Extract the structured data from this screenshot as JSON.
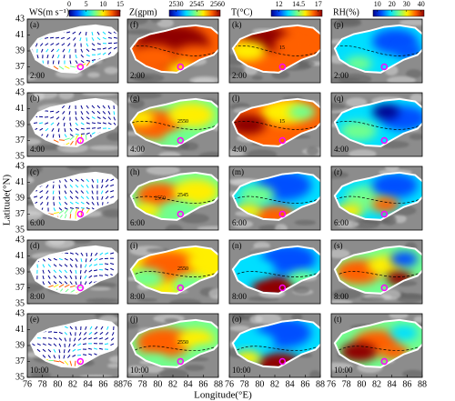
{
  "axes": {
    "ylabel": "Latitude(°N)",
    "xlabel": "Longitude(°E)",
    "xlim": [
      76,
      88
    ],
    "ylim": [
      35,
      43
    ],
    "xticks": [
      76,
      78,
      80,
      82,
      84,
      86,
      88
    ],
    "yticks": [
      35,
      37,
      39,
      41,
      43
    ]
  },
  "colorbars": [
    {
      "label": "WS(m s⁻¹)",
      "lim": [
        0,
        15
      ],
      "ticks": [
        0,
        5,
        10,
        15
      ],
      "colors": [
        "#00008f",
        "#0050ff",
        "#00dfff",
        "#70ff8f",
        "#ffef00",
        "#ff6000",
        "#8f0000"
      ]
    },
    {
      "label": "Z(gpm)",
      "lim": [
        2525,
        2562
      ],
      "ticks": [
        2530,
        2545,
        2560
      ],
      "colors": [
        "#00008f",
        "#0050ff",
        "#00dfff",
        "#70ff8f",
        "#ffef00",
        "#ff6000",
        "#8f0000"
      ]
    },
    {
      "label": "T(°C)",
      "lim": [
        11,
        17.5
      ],
      "ticks": [
        12,
        14.5,
        17
      ],
      "colors": [
        "#00008f",
        "#0050ff",
        "#00dfff",
        "#70ff8f",
        "#ffef00",
        "#ff6000",
        "#8f0000"
      ]
    },
    {
      "label": "RH(%)",
      "lim": [
        7,
        42
      ],
      "ticks": [
        10,
        20,
        30,
        40
      ],
      "colors": [
        "#00008f",
        "#0050ff",
        "#00dfff",
        "#70ff8f",
        "#ffef00",
        "#ff6000",
        "#8f0000"
      ]
    }
  ],
  "panels": [
    [
      {
        "letter": "(a)",
        "time": "2:00"
      },
      {
        "letter": "(f)",
        "time": "2:00"
      },
      {
        "letter": "(k)",
        "time": "2:00",
        "contour_labels": [
          "15"
        ]
      },
      {
        "letter": "(p)",
        "time": "2:00"
      }
    ],
    [
      {
        "letter": "(b)",
        "time": "4:00"
      },
      {
        "letter": "(g)",
        "time": "4:00",
        "contour_labels": [
          "2550"
        ]
      },
      {
        "letter": "(l)",
        "time": "4:00",
        "contour_labels": [
          "15"
        ]
      },
      {
        "letter": "(q)",
        "time": "4:00"
      }
    ],
    [
      {
        "letter": "(c)",
        "time": "6:00"
      },
      {
        "letter": "(h)",
        "time": "6:00",
        "contour_labels": [
          "2545",
          "2550"
        ]
      },
      {
        "letter": "(m)",
        "time": "6:00"
      },
      {
        "letter": "(r)",
        "time": "6:00"
      }
    ],
    [
      {
        "letter": "(d)",
        "time": "8:00"
      },
      {
        "letter": "(i)",
        "time": "8:00",
        "contour_labels": [
          "2550"
        ]
      },
      {
        "letter": "(n)",
        "time": "8:00"
      },
      {
        "letter": "(s)",
        "time": "8:00"
      }
    ],
    [
      {
        "letter": "(e)",
        "time": "10:00"
      },
      {
        "letter": "(j)",
        "time": "10:00",
        "contour_labels": [
          "2550"
        ]
      },
      {
        "letter": "(o)",
        "time": "10:00"
      },
      {
        "letter": "(t)",
        "time": "10:00"
      }
    ]
  ],
  "site": {
    "lon": 83,
    "lat": 37
  }
}
